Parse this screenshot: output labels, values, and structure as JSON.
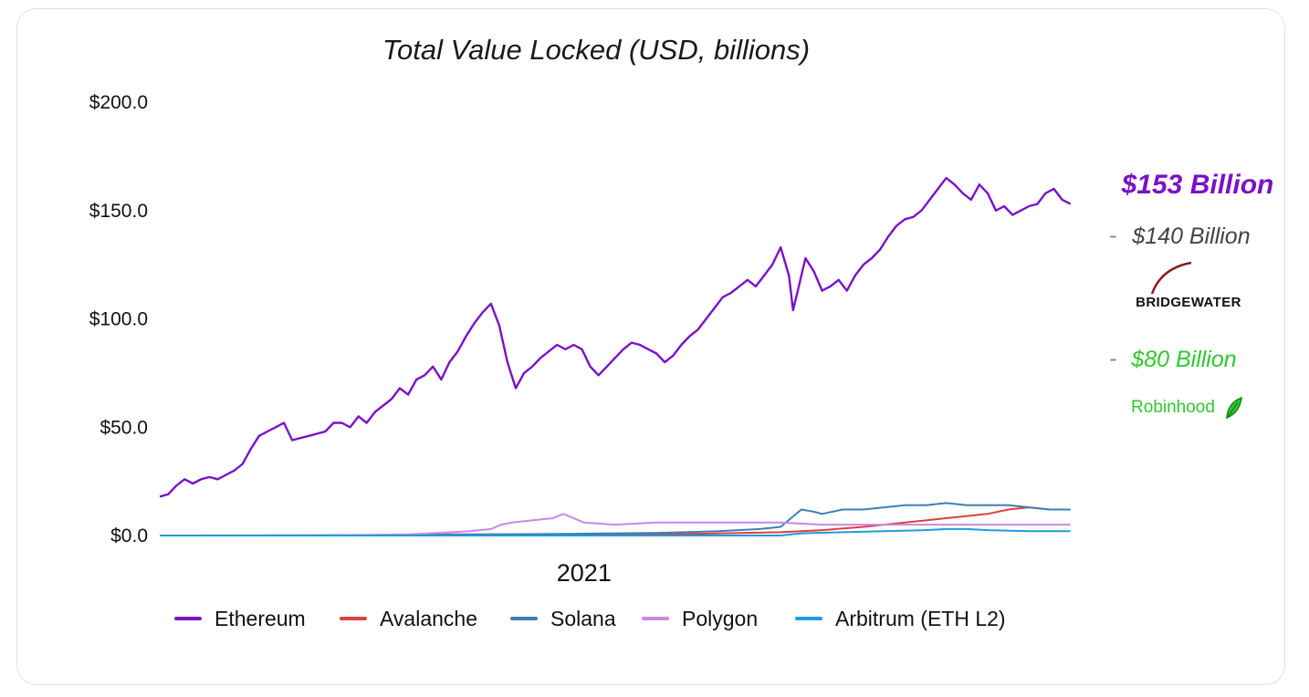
{
  "colors": {
    "ethereum": "#7a12c8",
    "avalanche": "#e0403c",
    "solana": "#3d80b4",
    "polygon": "#c58ae8",
    "arbitrum": "#1f9be0",
    "annotation_main": "#7a12c8",
    "annotation_bridgewater": "#444444",
    "annotation_robinhood": "#2fc930",
    "bridgewater_swoosh": "#8a1a1a"
  },
  "annotations": {
    "eth_value": "$153 Billion",
    "bridgewater_value": "$140 Billion",
    "bridgewater_logo": "BRIDGEWATER",
    "robinhood_value": "$80 Billion",
    "robinhood_logo": "Robinhood",
    "tick_mark": "-"
  },
  "chart_data": {
    "type": "line",
    "title": "Total Value Locked (USD, billions)",
    "xlabel": "",
    "ylabel": "",
    "ylim": [
      0,
      200
    ],
    "xlim": [
      0,
      460
    ],
    "yticks": [
      0,
      50,
      100,
      150,
      200
    ],
    "ytick_labels": [
      "$0.0",
      "$50.0",
      "$100.0",
      "$150.0",
      "$200.0"
    ],
    "xticks": [
      {
        "x": 205,
        "label": "2021"
      }
    ],
    "grid": false,
    "legend_position": "bottom",
    "series": [
      {
        "name": "Ethereum",
        "color_key": "ethereum",
        "points": [
          [
            0,
            18
          ],
          [
            4,
            19
          ],
          [
            8,
            23
          ],
          [
            12,
            26
          ],
          [
            16,
            24
          ],
          [
            20,
            26
          ],
          [
            24,
            27
          ],
          [
            28,
            26
          ],
          [
            32,
            28
          ],
          [
            36,
            30
          ],
          [
            40,
            33
          ],
          [
            44,
            40
          ],
          [
            48,
            46
          ],
          [
            52,
            48
          ],
          [
            56,
            50
          ],
          [
            60,
            52
          ],
          [
            64,
            44
          ],
          [
            68,
            45
          ],
          [
            72,
            46
          ],
          [
            76,
            47
          ],
          [
            80,
            48
          ],
          [
            84,
            52
          ],
          [
            88,
            52
          ],
          [
            92,
            50
          ],
          [
            96,
            55
          ],
          [
            100,
            52
          ],
          [
            104,
            57
          ],
          [
            108,
            60
          ],
          [
            112,
            63
          ],
          [
            116,
            68
          ],
          [
            120,
            65
          ],
          [
            124,
            72
          ],
          [
            128,
            74
          ],
          [
            132,
            78
          ],
          [
            136,
            72
          ],
          [
            140,
            80
          ],
          [
            144,
            85
          ],
          [
            148,
            92
          ],
          [
            152,
            98
          ],
          [
            156,
            103
          ],
          [
            160,
            107
          ],
          [
            164,
            97
          ],
          [
            168,
            80
          ],
          [
            172,
            68
          ],
          [
            176,
            75
          ],
          [
            180,
            78
          ],
          [
            184,
            82
          ],
          [
            188,
            85
          ],
          [
            192,
            88
          ],
          [
            196,
            86
          ],
          [
            200,
            88
          ],
          [
            204,
            86
          ],
          [
            208,
            78
          ],
          [
            212,
            74
          ],
          [
            216,
            78
          ],
          [
            220,
            82
          ],
          [
            224,
            86
          ],
          [
            228,
            89
          ],
          [
            232,
            88
          ],
          [
            236,
            86
          ],
          [
            240,
            84
          ],
          [
            244,
            80
          ],
          [
            248,
            83
          ],
          [
            252,
            88
          ],
          [
            256,
            92
          ],
          [
            260,
            95
          ],
          [
            264,
            100
          ],
          [
            268,
            105
          ],
          [
            272,
            110
          ],
          [
            276,
            112
          ],
          [
            280,
            115
          ],
          [
            284,
            118
          ],
          [
            288,
            115
          ],
          [
            292,
            120
          ],
          [
            296,
            125
          ],
          [
            300,
            133
          ],
          [
            304,
            120
          ],
          [
            306,
            104
          ],
          [
            308,
            112
          ],
          [
            312,
            128
          ],
          [
            316,
            122
          ],
          [
            320,
            113
          ],
          [
            324,
            115
          ],
          [
            328,
            118
          ],
          [
            332,
            113
          ],
          [
            336,
            120
          ],
          [
            340,
            125
          ],
          [
            344,
            128
          ],
          [
            348,
            132
          ],
          [
            352,
            138
          ],
          [
            356,
            143
          ],
          [
            360,
            146
          ],
          [
            364,
            147
          ],
          [
            368,
            150
          ],
          [
            372,
            155
          ],
          [
            376,
            160
          ],
          [
            380,
            165
          ],
          [
            384,
            162
          ],
          [
            388,
            158
          ],
          [
            392,
            155
          ],
          [
            396,
            162
          ],
          [
            400,
            158
          ],
          [
            404,
            150
          ],
          [
            408,
            152
          ],
          [
            412,
            148
          ],
          [
            416,
            150
          ],
          [
            420,
            152
          ],
          [
            424,
            153
          ],
          [
            428,
            158
          ],
          [
            432,
            160
          ],
          [
            436,
            155
          ],
          [
            440,
            153
          ]
        ]
      },
      {
        "name": "Avalanche",
        "color_key": "avalanche",
        "points": [
          [
            0,
            0
          ],
          [
            100,
            0
          ],
          [
            140,
            0.5
          ],
          [
            200,
            0.5
          ],
          [
            260,
            0.8
          ],
          [
            300,
            1.5
          ],
          [
            320,
            2.5
          ],
          [
            340,
            4
          ],
          [
            360,
            6
          ],
          [
            380,
            8
          ],
          [
            400,
            10
          ],
          [
            410,
            12
          ],
          [
            420,
            13
          ],
          [
            430,
            12
          ],
          [
            440,
            12
          ]
        ]
      },
      {
        "name": "Solana",
        "color_key": "solana",
        "points": [
          [
            0,
            0
          ],
          [
            120,
            0.2
          ],
          [
            160,
            0.5
          ],
          [
            200,
            0.8
          ],
          [
            240,
            1.2
          ],
          [
            270,
            2
          ],
          [
            290,
            3
          ],
          [
            300,
            4
          ],
          [
            305,
            8
          ],
          [
            310,
            12
          ],
          [
            316,
            11
          ],
          [
            320,
            10
          ],
          [
            330,
            12
          ],
          [
            340,
            12
          ],
          [
            350,
            13
          ],
          [
            360,
            14
          ],
          [
            370,
            14
          ],
          [
            380,
            15
          ],
          [
            390,
            14
          ],
          [
            400,
            14
          ],
          [
            410,
            14
          ],
          [
            420,
            13
          ],
          [
            430,
            12
          ],
          [
            440,
            12
          ]
        ]
      },
      {
        "name": "Polygon",
        "color_key": "polygon",
        "points": [
          [
            0,
            0
          ],
          [
            80,
            0
          ],
          [
            120,
            0.5
          ],
          [
            150,
            2
          ],
          [
            160,
            3
          ],
          [
            165,
            5
          ],
          [
            170,
            6
          ],
          [
            180,
            7
          ],
          [
            190,
            8
          ],
          [
            195,
            10
          ],
          [
            200,
            8
          ],
          [
            205,
            6
          ],
          [
            220,
            5
          ],
          [
            240,
            6
          ],
          [
            260,
            6
          ],
          [
            280,
            6
          ],
          [
            300,
            6
          ],
          [
            320,
            5
          ],
          [
            340,
            5
          ],
          [
            360,
            5
          ],
          [
            380,
            5
          ],
          [
            400,
            5
          ],
          [
            420,
            5
          ],
          [
            440,
            5
          ]
        ]
      },
      {
        "name": "Arbitrum (ETH L2)",
        "color_key": "arbitrum",
        "points": [
          [
            0,
            0
          ],
          [
            200,
            0
          ],
          [
            300,
            0
          ],
          [
            305,
            0.5
          ],
          [
            310,
            1
          ],
          [
            330,
            1.5
          ],
          [
            350,
            2
          ],
          [
            370,
            2.5
          ],
          [
            380,
            3
          ],
          [
            390,
            3
          ],
          [
            400,
            2.5
          ],
          [
            420,
            2
          ],
          [
            440,
            2
          ]
        ]
      }
    ]
  }
}
